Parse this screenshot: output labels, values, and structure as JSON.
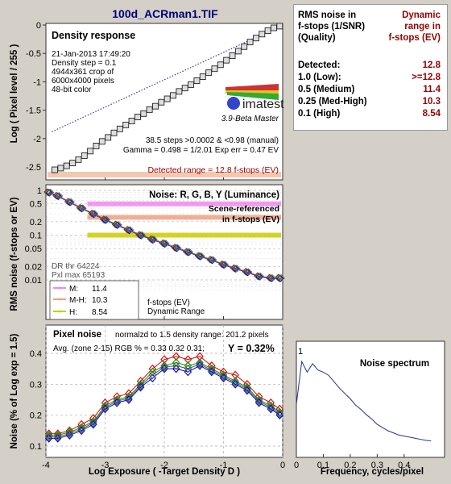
{
  "window": {
    "title": "100d_ACRman1.TIF"
  },
  "density_panel": {
    "title": "Density response",
    "info": [
      "21-Jan-2013 17:49:20",
      "Density step = 0.1",
      "4944x361 crop of",
      "6000x4000 pixels",
      "48-bit color"
    ],
    "logo": "imatest",
    "logo_sub": "3.9-Beta  Master",
    "stats1": "38.5 steps >0.0002 & <0.98 (manual)",
    "stats2": "Gamma = 0.498 = 1/2.01  Exp err = 0.47 EV",
    "detected": "Detected range = 12.8 f-stops (EV)",
    "ylabel": "Log ( Pixel level / 255 )"
  },
  "noise_panel": {
    "title": "Noise: R, G, B, Y (Luminance)",
    "scene1": "Scene-referenced",
    "scene2": "in f-stops (EV)",
    "dr1": "DR thr 64224",
    "dr2": "Pxl max 65193",
    "fstops1": "f-stops (EV)",
    "fstops2": "Dynamic Range",
    "ylabel": "RMS noise (f-stops or EV)",
    "legend": [
      {
        "label": "M:",
        "value": "11.4",
        "color": "#ee88ee"
      },
      {
        "label": "M-H:",
        "value": "10.3",
        "color": "#f0a080"
      },
      {
        "label": "H:",
        "value": "8.54",
        "color": "#cccc00"
      }
    ]
  },
  "pixel_panel": {
    "title": "Pixel noise",
    "norm": "normalzd to 1.5 density range: 201.2 pixels",
    "avg": "Avg. (zone 2-15) RGB % = 0.33  0.32  0.31;",
    "y": "Y = 0.32%",
    "ylabel": "Noise (% of Log exp = 1.5)",
    "xlabel": "Log Exposure ( -Target Density D )"
  },
  "spectrum_panel": {
    "title": "Noise spectrum",
    "xlabel": "Frequency, cycles/pixel"
  },
  "table": {
    "head_left": [
      "RMS noise in",
      "f-stops (1/SNR)",
      "(Quality)"
    ],
    "head_right": [
      "Dynamic",
      "range in",
      "f-stops (EV)"
    ],
    "rows": [
      {
        "label": "Detected:",
        "value": "12.8"
      },
      {
        "label": "1.0  (Low):",
        "value": ">=12.8"
      },
      {
        "label": "0.5  (Medium)",
        "value": "11.4"
      },
      {
        "label": "0.25 (Med-High)",
        "value": "10.3"
      },
      {
        "label": "0.1  (High)",
        "value": "8.54"
      }
    ]
  },
  "chart_data": [
    {
      "type": "line",
      "title": "Density response",
      "ylabel": "Log ( Pixel level / 255 )",
      "xlim": [
        -4,
        0
      ],
      "ylim": [
        -2.7,
        0
      ],
      "xticks": [
        "-4",
        "-3",
        "-2",
        "-1",
        "0"
      ],
      "yticks": [
        "0",
        "-0.5",
        "-1",
        "-1.5",
        "-2",
        "-2.5"
      ],
      "series": [
        {
          "marker": "square",
          "x": [
            -3.85,
            -3.75,
            -3.65,
            -3.55,
            -3.45,
            -3.35,
            -3.25,
            -3.15,
            -3.05,
            -2.95,
            -2.85,
            -2.75,
            -2.65,
            -2.55,
            -2.45,
            -2.35,
            -2.25,
            -2.15,
            -2.05,
            -1.95,
            -1.85,
            -1.75,
            -1.65,
            -1.55,
            -1.45,
            -1.35,
            -1.25,
            -1.15,
            -1.05,
            -0.95,
            -0.85,
            -0.75,
            -0.65,
            -0.55,
            -0.45,
            -0.35,
            -0.25,
            -0.15,
            -0.05
          ],
          "y": [
            -2.55,
            -2.52,
            -2.48,
            -2.43,
            -2.37,
            -2.3,
            -2.22,
            -2.13,
            -2.05,
            -1.98,
            -1.9,
            -1.83,
            -1.76,
            -1.69,
            -1.62,
            -1.56,
            -1.49,
            -1.43,
            -1.36,
            -1.3,
            -1.24,
            -1.17,
            -1.11,
            -1.05,
            -0.98,
            -0.91,
            -0.84,
            -0.77,
            -0.7,
            -0.62,
            -0.54,
            -0.46,
            -0.38,
            -0.3,
            -0.23,
            -0.16,
            -0.1,
            -0.05,
            -0.02
          ]
        },
        {
          "style": "dotted",
          "x": [
            -3.9,
            0
          ],
          "y": [
            -1.88,
            0
          ]
        }
      ]
    },
    {
      "type": "line",
      "title": "Noise: R, G, B, Y (Luminance)",
      "ylabel": "RMS noise (f-stops or EV)",
      "yscale": "log",
      "ylim": [
        0.004,
        1.2
      ],
      "xlim": [
        -4,
        0
      ],
      "yticks": [
        "1",
        "0.5",
        "0.2",
        "0.1",
        "0.05",
        "0.02",
        "0.01"
      ],
      "reference_lines": [
        {
          "y": 0.5,
          "color": "#ee88ee"
        },
        {
          "y": 0.25,
          "color": "#f0a080"
        },
        {
          "y": 0.1,
          "color": "#cccc00"
        }
      ],
      "x": [
        -3.95,
        -3.8,
        -3.6,
        -3.4,
        -3.2,
        -3.0,
        -2.8,
        -2.6,
        -2.4,
        -2.2,
        -2.0,
        -1.8,
        -1.6,
        -1.4,
        -1.2,
        -1.0,
        -0.8,
        -0.6,
        -0.4,
        -0.2,
        -0.05
      ],
      "y": [
        0.9,
        0.75,
        0.55,
        0.4,
        0.3,
        0.22,
        0.17,
        0.13,
        0.1,
        0.08,
        0.065,
        0.052,
        0.042,
        0.034,
        0.028,
        0.022,
        0.018,
        0.015,
        0.012,
        0.011,
        0.011
      ]
    },
    {
      "type": "line",
      "title": "Pixel noise",
      "ylabel": "Noise (% of Log exp = 1.5)",
      "xlabel": "Log Exposure ( -Target Density D )",
      "xlim": [
        -4,
        0
      ],
      "ylim": [
        0.1,
        0.45
      ],
      "xticks": [
        "-4",
        "-3",
        "-2",
        "-1",
        "0"
      ],
      "yticks": [
        "0.1",
        "0.2",
        "0.3",
        "0.4"
      ],
      "x": [
        -3.95,
        -3.8,
        -3.6,
        -3.4,
        -3.2,
        -3.0,
        -2.8,
        -2.6,
        -2.4,
        -2.2,
        -2.0,
        -1.8,
        -1.6,
        -1.4,
        -1.2,
        -1.0,
        -0.8,
        -0.6,
        -0.4,
        -0.2,
        -0.05
      ],
      "series": [
        {
          "name": "R",
          "color": "#e00000",
          "y": [
            0.14,
            0.14,
            0.15,
            0.17,
            0.19,
            0.24,
            0.26,
            0.27,
            0.31,
            0.35,
            0.38,
            0.39,
            0.38,
            0.39,
            0.36,
            0.34,
            0.33,
            0.3,
            0.26,
            0.24,
            0.22
          ]
        },
        {
          "name": "G",
          "color": "#00a000",
          "y": [
            0.135,
            0.135,
            0.145,
            0.16,
            0.18,
            0.23,
            0.25,
            0.26,
            0.3,
            0.34,
            0.36,
            0.37,
            0.36,
            0.37,
            0.35,
            0.33,
            0.31,
            0.29,
            0.25,
            0.23,
            0.21
          ]
        },
        {
          "name": "B",
          "color": "#0000e0",
          "y": [
            0.125,
            0.125,
            0.135,
            0.15,
            0.17,
            0.22,
            0.24,
            0.25,
            0.29,
            0.32,
            0.35,
            0.35,
            0.34,
            0.36,
            0.34,
            0.32,
            0.3,
            0.28,
            0.24,
            0.22,
            0.2
          ]
        },
        {
          "name": "Y",
          "color": "#555555",
          "y": [
            0.13,
            0.13,
            0.14,
            0.155,
            0.175,
            0.225,
            0.245,
            0.255,
            0.295,
            0.33,
            0.355,
            0.36,
            0.35,
            0.365,
            0.345,
            0.325,
            0.305,
            0.285,
            0.245,
            0.225,
            0.205
          ]
        }
      ]
    },
    {
      "type": "line",
      "title": "Noise spectrum",
      "xlabel": "Frequency, cycles/pixel",
      "xlim": [
        0,
        0.5
      ],
      "ylim": [
        0,
        1
      ],
      "xticks": [
        "0",
        "0.1",
        "0.2",
        "0.3",
        "0.4"
      ],
      "yticks": [
        "1"
      ],
      "x": [
        0.0,
        0.02,
        0.04,
        0.06,
        0.08,
        0.1,
        0.12,
        0.14,
        0.16,
        0.18,
        0.2,
        0.22,
        0.24,
        0.26,
        0.28,
        0.3,
        0.32,
        0.34,
        0.36,
        0.38,
        0.4,
        0.42,
        0.44,
        0.46,
        0.48,
        0.5
      ],
      "y": [
        0.5,
        0.9,
        0.8,
        0.88,
        0.82,
        0.8,
        0.77,
        0.71,
        0.65,
        0.6,
        0.55,
        0.49,
        0.45,
        0.4,
        0.36,
        0.31,
        0.28,
        0.25,
        0.23,
        0.21,
        0.2,
        0.19,
        0.18,
        0.17,
        0.16,
        0.155
      ]
    }
  ]
}
